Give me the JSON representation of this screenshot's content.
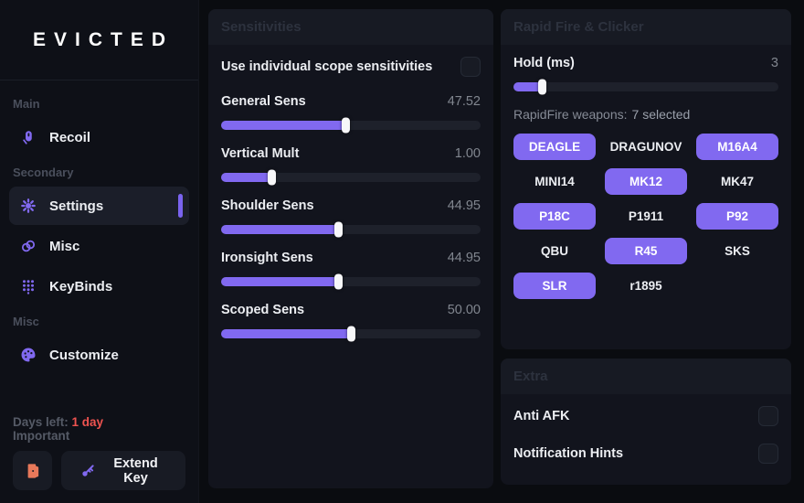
{
  "sidebar": {
    "title": "EVICTED",
    "sections": [
      {
        "label": "Main",
        "items": [
          {
            "label": "Recoil",
            "icon": "mouse-icon",
            "active": false
          }
        ]
      },
      {
        "label": "Secondary",
        "items": [
          {
            "label": "Settings",
            "icon": "gear-icon",
            "active": true
          },
          {
            "label": "Misc",
            "icon": "link-icon",
            "active": false
          },
          {
            "label": "KeyBinds",
            "icon": "keypad-icon",
            "active": false
          }
        ]
      },
      {
        "label": "Misc",
        "items": [
          {
            "label": "Customize",
            "icon": "palette-icon",
            "active": false
          }
        ]
      }
    ],
    "footer": {
      "days_left_label": "Days left:",
      "days_left_value": "1 day",
      "important_label": "Important",
      "logout_icon": "door-icon",
      "extend_key_icon": "key-icon",
      "extend_key_label": "Extend Key"
    }
  },
  "panels": {
    "sensitivities": {
      "title": "Sensitivities",
      "checkbox": {
        "label": "Use individual scope sensitivities",
        "checked": false
      },
      "sliders": [
        {
          "label": "General Sens",
          "value": "47.52",
          "percent": 48
        },
        {
          "label": "Vertical Mult",
          "value": "1.00",
          "percent": 19.5
        },
        {
          "label": "Shoulder Sens",
          "value": "44.95",
          "percent": 45
        },
        {
          "label": "Ironsight Sens",
          "value": "44.95",
          "percent": 45
        },
        {
          "label": "Scoped Sens",
          "value": "50.00",
          "percent": 50
        }
      ]
    },
    "rapid_fire": {
      "title": "Rapid Fire & Clicker",
      "hold": {
        "label": "Hold (ms)",
        "value": "3",
        "percent": 10.7
      },
      "weapons_label": "RapidFire weapons:",
      "weapons_count": "7 selected",
      "weapons": [
        {
          "name": "DEAGLE",
          "selected": true
        },
        {
          "name": "DRAGUNOV",
          "selected": false
        },
        {
          "name": "M16A4",
          "selected": true
        },
        {
          "name": "MINI14",
          "selected": false
        },
        {
          "name": "MK12",
          "selected": true
        },
        {
          "name": "MK47",
          "selected": false
        },
        {
          "name": "P18C",
          "selected": true
        },
        {
          "name": "P1911",
          "selected": false
        },
        {
          "name": "P92",
          "selected": true
        },
        {
          "name": "QBU",
          "selected": false
        },
        {
          "name": "R45",
          "selected": true
        },
        {
          "name": "SKS",
          "selected": false
        },
        {
          "name": "SLR",
          "selected": true
        },
        {
          "name": "r1895",
          "selected": false
        }
      ]
    },
    "extra": {
      "title": "Extra",
      "items": [
        {
          "label": "Anti AFK",
          "checked": false
        },
        {
          "label": "Notification Hints",
          "checked": false
        }
      ]
    }
  },
  "colors": {
    "accent": "#8169f0",
    "danger": "#ef5350",
    "logout_orange": "#e8795a"
  }
}
